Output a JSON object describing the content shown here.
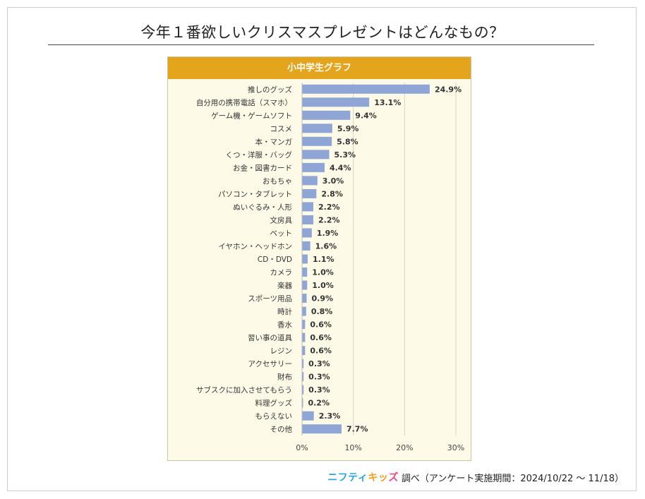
{
  "title": "今年１番欲しいクリスマスプレゼントはどんなもの？",
  "panel_title": "小中学生グラフ",
  "footer": {
    "logo_part1": "ニフティ",
    "logo_part2": "キッ",
    "logo_part3": "ズ",
    "text": "調べ（アンケート実施期間：2024/10/22 ～ 11/18）"
  },
  "colors": {
    "bar": "#8ea5d6",
    "header": "#e4a41c",
    "panel_bg": "#fdfbe8"
  },
  "chart_data": {
    "type": "bar",
    "orientation": "horizontal",
    "categories": [
      "推しのグッズ",
      "自分用の携帯電話（スマホ）",
      "ゲーム機・ゲームソフト",
      "コスメ",
      "本・マンガ",
      "くつ・洋服・バッグ",
      "お金・図書カード",
      "おもちゃ",
      "パソコン・タブレット",
      "ぬいぐるみ・人形",
      "文房具",
      "ペット",
      "イヤホン・ヘッドホン",
      "CD・DVD",
      "カメラ",
      "楽器",
      "スポーツ用品",
      "時計",
      "香水",
      "習い事の道具",
      "レジン",
      "アクセサリー",
      "財布",
      "サブスクに加入させてもらう",
      "料理グッズ",
      "もらえない",
      "その他"
    ],
    "values": [
      24.9,
      13.1,
      9.4,
      5.9,
      5.8,
      5.3,
      4.4,
      3.0,
      2.8,
      2.2,
      2.2,
      1.9,
      1.6,
      1.1,
      1.0,
      1.0,
      0.9,
      0.8,
      0.6,
      0.6,
      0.6,
      0.3,
      0.3,
      0.3,
      0.2,
      2.3,
      7.7
    ],
    "value_labels": [
      "24.9%",
      "13.1%",
      "9.4%",
      "5.9%",
      "5.8%",
      "5.3%",
      "4.4%",
      "3.0%",
      "2.8%",
      "2.2%",
      "2.2%",
      "1.9%",
      "1.6%",
      "1.1%",
      "1.0%",
      "1.0%",
      "0.9%",
      "0.8%",
      "0.6%",
      "0.6%",
      "0.6%",
      "0.3%",
      "0.3%",
      "0.3%",
      "0.2%",
      "2.3%",
      "7.7%"
    ],
    "xlim": [
      0,
      30
    ],
    "x_ticks": [
      "0%",
      "10%",
      "20%",
      "30%"
    ],
    "grid": true
  }
}
